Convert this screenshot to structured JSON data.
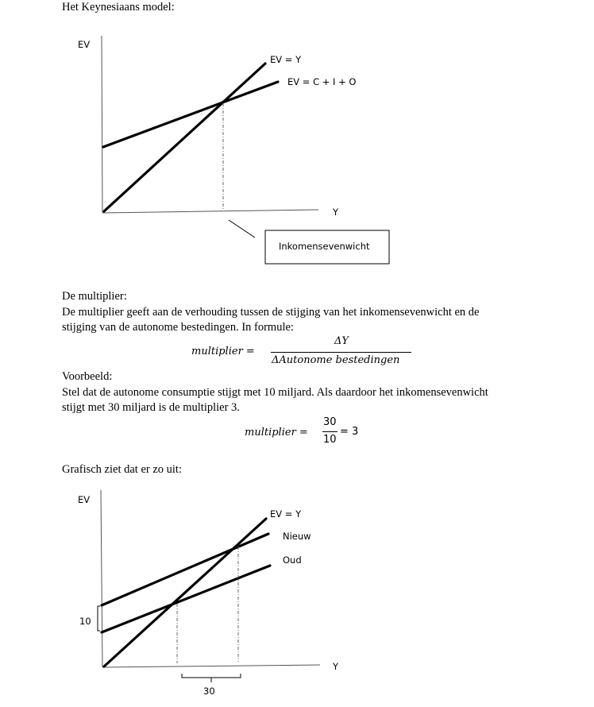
{
  "heading": "Het Keynesiaans model:",
  "diagram1": {
    "y_axis_label": "EV",
    "x_axis_label": "Y",
    "line_45": "EV = Y",
    "line_spending": "EV = C + I + O",
    "callout": "Inkomensevenwicht"
  },
  "multiplier": {
    "title": "De multiplier:",
    "line1": "De multiplier geeft aan de verhouding tussen de stijging van het inkomensevenwicht en de",
    "line2": "stijging van de autonome bestedingen. In formule:",
    "formula": {
      "lhs": "multiplier =",
      "numerator": "ΔY",
      "denominator": "ΔAutonome bestedingen"
    }
  },
  "example": {
    "title": "Voorbeeld:",
    "line1": "Stel dat de autonome consumptie stijgt met 10 miljard. Als daardoor het inkomensevenwicht",
    "line2": "stijgt met 30 miljard is de multiplier 3.",
    "formula": {
      "lhs": "multiplier =",
      "numerator": "30",
      "denominator": "10",
      "result": "= 3"
    }
  },
  "graphic_intro": "Grafisch ziet dat er zo uit:",
  "diagram2": {
    "y_axis_label": "EV",
    "x_axis_label": "Y",
    "line_45": "EV = Y",
    "line_new": "Nieuw",
    "line_old": "Oud",
    "shift_label": "10",
    "income_change_label": "30"
  }
}
